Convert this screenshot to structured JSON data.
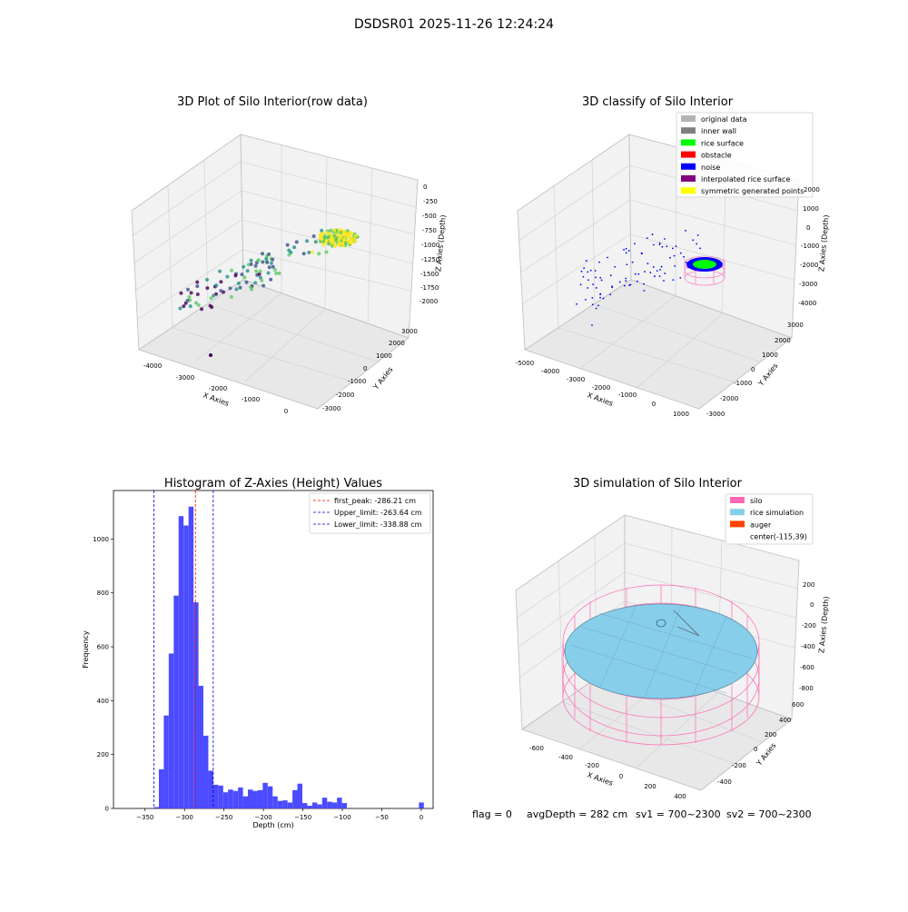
{
  "figure": {
    "suptitle": "DSDSR01 2025-11-26 12:24:24",
    "footer": {
      "flag": "flag = 0",
      "avg_depth": "avgDepth = 282 cm",
      "sv1": "sv1 = 700~2300",
      "sv2": "sv2 = 700~2300"
    }
  },
  "chart_data": [
    {
      "type": "scatter",
      "projection": "3d",
      "title": "3D Plot of Silo Interior(row data)",
      "xlabel": "X Axies",
      "ylabel": "Y Axies",
      "zlabel": "Z Axies (Depth)",
      "x_ticks": [
        "-4000",
        "-3000",
        "-2000",
        "-1000",
        "0"
      ],
      "y_ticks": [
        "3000",
        "2000",
        "1000",
        "0",
        "-1000",
        "-2000",
        "-3000"
      ],
      "z_ticks": [
        "0",
        "-250",
        "-500",
        "-750",
        "-1000",
        "-1250",
        "-1500",
        "-1750",
        "-2000"
      ],
      "colormap": [
        "#440154",
        "#3b528b",
        "#21918c",
        "#5ec962",
        "#fde725"
      ],
      "grid": true
    },
    {
      "type": "scatter",
      "projection": "3d",
      "title": "3D classify of Silo Interior",
      "xlabel": "X Axies",
      "ylabel": "Y Axies",
      "zlabel": "Z Axies (Depth)",
      "x_ticks": [
        "-5000",
        "-4000",
        "-3000",
        "-2000",
        "-1000",
        "0",
        "1000"
      ],
      "y_ticks": [
        "3000",
        "2000",
        "1000",
        "0",
        "-1000",
        "-2000",
        "-3000"
      ],
      "z_ticks": [
        "2000",
        "1000",
        "0",
        "-1000",
        "-2000",
        "-3000",
        "-4000"
      ],
      "legend": [
        {
          "label": "original data",
          "color": "#b3b3b3"
        },
        {
          "label": "inner wall",
          "color": "#808080"
        },
        {
          "label": "rice surface",
          "color": "#00ff00"
        },
        {
          "label": "obstacle",
          "color": "#ff0000"
        },
        {
          "label": "noise",
          "color": "#0000ff"
        },
        {
          "label": "interpolated rice surface",
          "color": "#800080"
        },
        {
          "label": "symmetric generated points",
          "color": "#ffff00"
        }
      ],
      "legend_position": "upper-right",
      "grid": true
    },
    {
      "type": "bar",
      "title": "Histogram of Z-Axies (Height) Values",
      "xlabel": "Depth (cm)",
      "ylabel": "Frequency",
      "xlim": [
        -390,
        15
      ],
      "ylim": [
        0,
        1180
      ],
      "x_ticks": [
        -350,
        -300,
        -250,
        -200,
        -150,
        -100,
        -50,
        0
      ],
      "y_ticks": [
        0,
        200,
        400,
        600,
        800,
        1000
      ],
      "bin_width": 6.27,
      "bins": [
        {
          "x": -338.8,
          "value": 5
        },
        {
          "x": -332.5,
          "value": 145
        },
        {
          "x": -326.3,
          "value": 345
        },
        {
          "x": -320.0,
          "value": 575
        },
        {
          "x": -313.7,
          "value": 790
        },
        {
          "x": -307.5,
          "value": 1085
        },
        {
          "x": -301.2,
          "value": 1050
        },
        {
          "x": -294.9,
          "value": 1120
        },
        {
          "x": -288.6,
          "value": 765
        },
        {
          "x": -282.4,
          "value": 455
        },
        {
          "x": -276.1,
          "value": 270
        },
        {
          "x": -269.8,
          "value": 140
        },
        {
          "x": -263.6,
          "value": 88
        },
        {
          "x": -257.3,
          "value": 85
        },
        {
          "x": -251.0,
          "value": 60
        },
        {
          "x": -244.8,
          "value": 70
        },
        {
          "x": -238.5,
          "value": 65
        },
        {
          "x": -232.2,
          "value": 78
        },
        {
          "x": -225.9,
          "value": 45
        },
        {
          "x": -219.7,
          "value": 70
        },
        {
          "x": -213.4,
          "value": 65
        },
        {
          "x": -207.1,
          "value": 68
        },
        {
          "x": -200.9,
          "value": 95
        },
        {
          "x": -194.6,
          "value": 82
        },
        {
          "x": -188.3,
          "value": 45
        },
        {
          "x": -182.0,
          "value": 28
        },
        {
          "x": -175.8,
          "value": 30
        },
        {
          "x": -169.5,
          "value": 22
        },
        {
          "x": -163.2,
          "value": 68
        },
        {
          "x": -157.0,
          "value": 92
        },
        {
          "x": -150.7,
          "value": 20
        },
        {
          "x": -144.4,
          "value": 10
        },
        {
          "x": -138.1,
          "value": 22
        },
        {
          "x": -131.9,
          "value": 15
        },
        {
          "x": -125.6,
          "value": 40
        },
        {
          "x": -119.3,
          "value": 25
        },
        {
          "x": -113.1,
          "value": 22
        },
        {
          "x": -106.8,
          "value": 40
        },
        {
          "x": -100.5,
          "value": 20
        },
        {
          "x": -94.2,
          "value": 0
        },
        {
          "x": -88.0,
          "value": 0
        },
        {
          "x": -81.7,
          "value": 0
        },
        {
          "x": -75.4,
          "value": 0
        },
        {
          "x": -69.2,
          "value": 0
        },
        {
          "x": -62.9,
          "value": 0
        },
        {
          "x": -56.6,
          "value": 0
        },
        {
          "x": -50.3,
          "value": 0
        },
        {
          "x": -44.1,
          "value": 0
        },
        {
          "x": -37.8,
          "value": 0
        },
        {
          "x": -31.5,
          "value": 0
        },
        {
          "x": -25.3,
          "value": 0
        },
        {
          "x": -19.0,
          "value": 0
        },
        {
          "x": -12.7,
          "value": 0
        },
        {
          "x": -6.4,
          "value": 0
        },
        {
          "x": -3.0,
          "value": 22
        }
      ],
      "bar_color": "#4b4bff",
      "vlines": [
        {
          "label": "first_peak: -286.21 cm",
          "x": -286.21,
          "color": "#ff0000"
        },
        {
          "label": "Upper_limit: -263.64 cm",
          "x": -263.64,
          "color": "#0000cc"
        },
        {
          "label": "Lower_limit: -338.88 cm",
          "x": -338.88,
          "color": "#0000cc"
        }
      ],
      "legend_position": "upper-right",
      "grid": false
    },
    {
      "type": "surface",
      "projection": "3d",
      "title": "3D simulation of Silo Interior",
      "xlabel": "X Axies",
      "ylabel": "Y Axies",
      "zlabel": "Z Axies (Depth)",
      "x_ticks": [
        "-600",
        "-400",
        "-200",
        "0",
        "200",
        "400"
      ],
      "y_ticks": [
        "600",
        "400",
        "200",
        "0",
        "-200",
        "-400"
      ],
      "z_ticks": [
        "200",
        "0",
        "-200",
        "-400",
        "-600",
        "-800"
      ],
      "legend": [
        {
          "label": "silo",
          "color": "#ff69b4"
        },
        {
          "label": "rice simulation",
          "color": "#87ceeb"
        },
        {
          "label": "auger",
          "color": "#ff4500"
        },
        {
          "label": "center(-115,39)",
          "color": ""
        }
      ],
      "legend_position": "upper-right",
      "grid": true
    }
  ]
}
